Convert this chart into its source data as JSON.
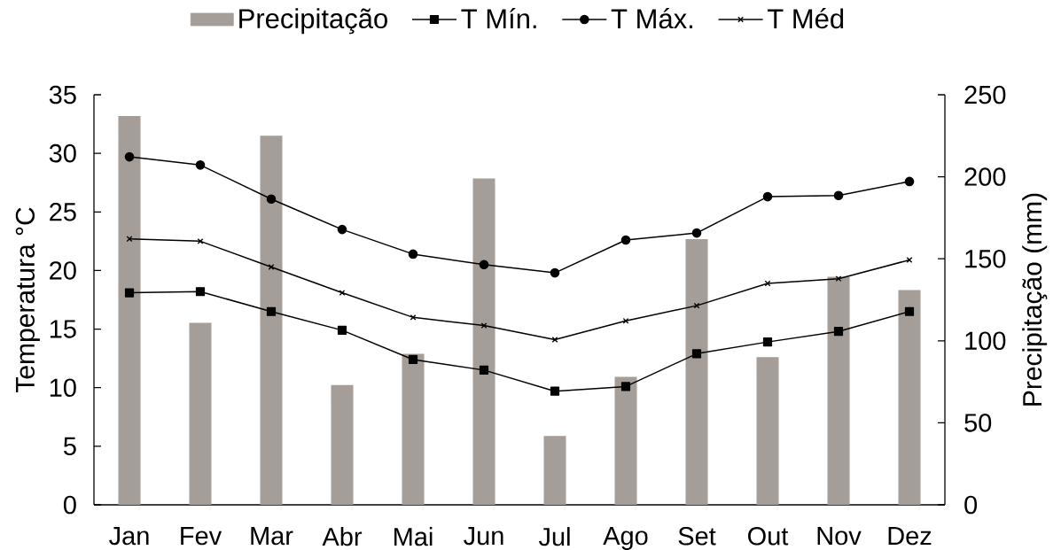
{
  "chart_data": {
    "type": "bar",
    "categories": [
      "Jan",
      "Fev",
      "Mar",
      "Abr",
      "Mai",
      "Jun",
      "Jul",
      "Ago",
      "Set",
      "Out",
      "Nov",
      "Dez"
    ],
    "series": [
      {
        "name": "Precipitação",
        "axis": "y2",
        "color": "#a59d98",
        "values": [
          237,
          111,
          225,
          73,
          92,
          199,
          42,
          78,
          162,
          90,
          139,
          131
        ]
      },
      {
        "name": "T Mín.",
        "type": "line",
        "marker": "square",
        "color": "#000000",
        "values": [
          18.1,
          18.2,
          16.5,
          14.9,
          12.4,
          11.5,
          9.7,
          10.1,
          12.9,
          13.9,
          14.8,
          16.5
        ]
      },
      {
        "name": "T Máx.",
        "type": "line",
        "marker": "circle",
        "color": "#000000",
        "values": [
          29.7,
          29.0,
          26.1,
          23.5,
          21.4,
          20.5,
          19.8,
          22.6,
          23.2,
          26.3,
          26.4,
          27.6
        ]
      },
      {
        "name": "T Méd",
        "type": "line",
        "marker": "cross",
        "color": "#000000",
        "values": [
          22.7,
          22.5,
          20.3,
          18.1,
          16.0,
          15.3,
          14.1,
          15.7,
          17.0,
          18.9,
          19.3,
          20.9
        ]
      }
    ],
    "ylabel": "Temperatura °C",
    "y2label": "Precipitação (mm)",
    "ylim": [
      0,
      35
    ],
    "yticks": [
      0,
      5,
      10,
      15,
      20,
      25,
      30,
      35
    ],
    "y2lim": [
      0,
      250
    ],
    "y2ticks": [
      0,
      50,
      100,
      150,
      200,
      250
    ],
    "legend": "top",
    "grid": false
  }
}
